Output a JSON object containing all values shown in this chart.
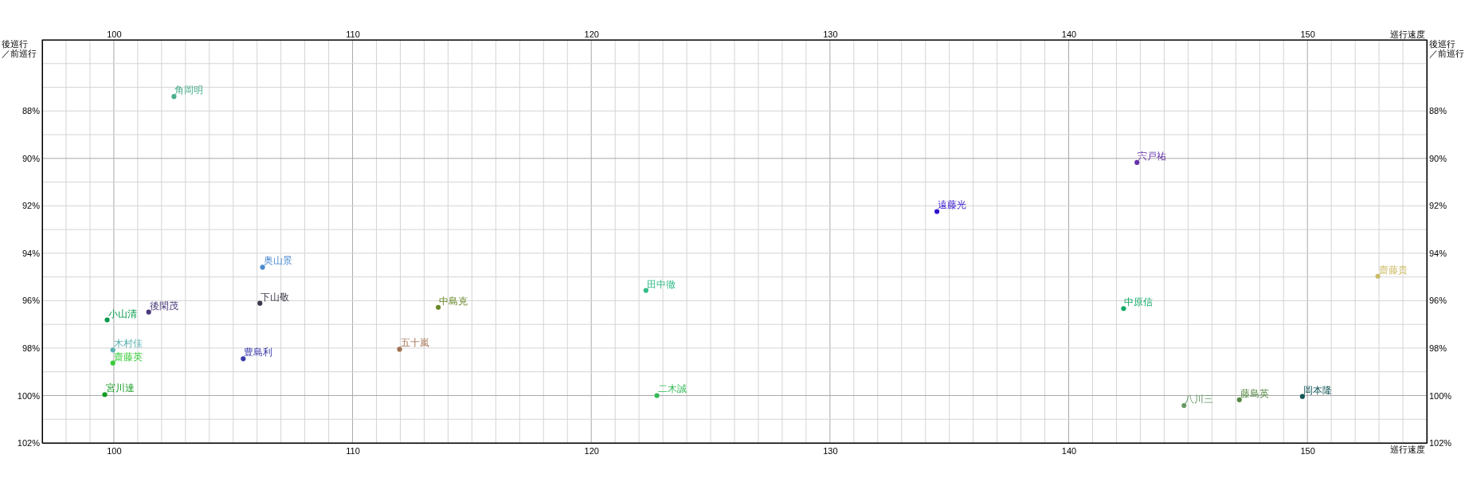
{
  "chart_data": {
    "type": "scatter",
    "xlabel": "巡行速度",
    "x2label": "巡行速度",
    "ylabel": "後巡行／前巡行",
    "y2label": "後巡行／前巡行",
    "grid": true,
    "marker": "circle",
    "xlim": [
      97,
      155
    ],
    "x2lim": [
      97,
      155
    ],
    "ylim": [
      102,
      85
    ],
    "y2lim": [
      102,
      85
    ],
    "xticks": [
      {
        "value": 97,
        "label": null
      },
      {
        "value": 98,
        "label": null
      },
      {
        "value": 99,
        "label": null
      },
      100,
      {
        "value": 101,
        "label": null
      },
      {
        "value": 102,
        "label": null
      },
      {
        "value": 103,
        "label": null
      },
      {
        "value": 104,
        "label": null
      },
      {
        "value": 105,
        "label": null
      },
      {
        "value": 106,
        "label": null
      },
      {
        "value": 107,
        "label": null
      },
      {
        "value": 108,
        "label": null
      },
      {
        "value": 109,
        "label": null
      },
      110,
      {
        "value": 111,
        "label": null
      },
      {
        "value": 112,
        "label": null
      },
      {
        "value": 113,
        "label": null
      },
      {
        "value": 114,
        "label": null
      },
      {
        "value": 115,
        "label": null
      },
      {
        "value": 116,
        "label": null
      },
      {
        "value": 117,
        "label": null
      },
      {
        "value": 118,
        "label": null
      },
      {
        "value": 119,
        "label": null
      },
      120,
      {
        "value": 121,
        "label": null
      },
      {
        "value": 122,
        "label": null
      },
      {
        "value": 123,
        "label": null
      },
      {
        "value": 124,
        "label": null
      },
      {
        "value": 125,
        "label": null
      },
      {
        "value": 126,
        "label": null
      },
      {
        "value": 127,
        "label": null
      },
      {
        "value": 128,
        "label": null
      },
      {
        "value": 129,
        "label": null
      },
      130,
      {
        "value": 131,
        "label": null
      },
      {
        "value": 132,
        "label": null
      },
      {
        "value": 133,
        "label": null
      },
      {
        "value": 134,
        "label": null
      },
      {
        "value": 135,
        "label": null
      },
      {
        "value": 136,
        "label": null
      },
      {
        "value": 137,
        "label": null
      },
      {
        "value": 138,
        "label": null
      },
      {
        "value": 139,
        "label": null
      },
      140,
      {
        "value": 141,
        "label": null
      },
      {
        "value": 142,
        "label": null
      },
      {
        "value": 143,
        "label": null
      },
      {
        "value": 144,
        "label": null
      },
      {
        "value": 145,
        "label": null
      },
      {
        "value": 146,
        "label": null
      },
      {
        "value": 147,
        "label": null
      },
      {
        "value": 148,
        "label": null
      },
      {
        "value": 149,
        "label": null
      },
      150,
      {
        "value": 151,
        "label": null
      },
      {
        "value": 152,
        "label": null
      },
      {
        "value": 153,
        "label": null
      },
      {
        "value": 154,
        "label": null
      },
      {
        "value": 155,
        "label": null
      }
    ],
    "x2ticks": [
      100,
      110,
      120,
      130,
      140,
      150
    ],
    "yticks": [
      {
        "value": 86,
        "label": null
      },
      {
        "value": 87,
        "label": null
      },
      {
        "value": 88,
        "label": "88%"
      },
      {
        "value": 89,
        "label": null
      },
      {
        "value": 90,
        "label": "90%"
      },
      {
        "value": 91,
        "label": null
      },
      {
        "value": 92,
        "label": "92%"
      },
      {
        "value": 93,
        "label": null
      },
      {
        "value": 94,
        "label": "94%"
      },
      {
        "value": 95,
        "label": null
      },
      {
        "value": 96,
        "label": "96%"
      },
      {
        "value": 97,
        "label": null
      },
      {
        "value": 98,
        "label": "98%"
      },
      {
        "value": 99,
        "label": null
      },
      {
        "value": 100,
        "label": "100%"
      },
      {
        "value": 101,
        "label": null
      },
      {
        "value": 102,
        "label": "102%"
      }
    ],
    "y2ticks": [
      {
        "value": 88,
        "label": "88%"
      },
      {
        "value": 90,
        "label": "90%"
      },
      {
        "value": 92,
        "label": "92%"
      },
      {
        "value": 94,
        "label": "94%"
      },
      {
        "value": 96,
        "label": "96%"
      },
      {
        "value": 98,
        "label": "98%"
      },
      {
        "value": 100,
        "label": "100%"
      },
      {
        "value": 102,
        "label": "102%"
      }
    ],
    "series": [
      {
        "name": "角岡明",
        "color": "#4aae8a",
        "x": [
          102.52
        ],
        "values": [
          87.39
        ]
      },
      {
        "name": "奥山景",
        "color": "#4a8ad0",
        "x": [
          106.23
        ],
        "values": [
          94.59
        ]
      },
      {
        "name": "下山敬",
        "color": "#3a3a4a",
        "x": [
          106.12
        ],
        "values": [
          96.11
        ]
      },
      {
        "name": "後閑茂",
        "color": "#4a3a7a",
        "x": [
          101.46
        ],
        "values": [
          96.48
        ]
      },
      {
        "name": "小山清",
        "color": "#00994a",
        "x": [
          99.72
        ],
        "values": [
          96.81
        ]
      },
      {
        "name": "中島克",
        "color": "#6a8a2a",
        "x": [
          113.59
        ],
        "values": [
          96.28
        ]
      },
      {
        "name": "五十嵐",
        "color": "#a07050",
        "x": [
          111.97
        ],
        "values": [
          98.05
        ]
      },
      {
        "name": "豊島利",
        "color": "#3a3aaa",
        "x": [
          105.42
        ],
        "values": [
          98.45
        ]
      },
      {
        "name": "木村佳",
        "color": "#5ab0b0",
        "x": [
          99.96
        ],
        "values": [
          98.08
        ]
      },
      {
        "name": "齋藤英",
        "color": "#3acc3a",
        "x": [
          99.96
        ],
        "values": [
          98.63
        ]
      },
      {
        "name": "宮川達",
        "color": "#119922",
        "x": [
          99.62
        ],
        "values": [
          99.96
        ]
      },
      {
        "name": "田中徹",
        "color": "#33bb88",
        "x": [
          122.29
        ],
        "values": [
          95.57
        ]
      },
      {
        "name": "二木誠",
        "color": "#33bb55",
        "x": [
          122.75
        ],
        "values": [
          100.0
        ]
      },
      {
        "name": "遠藤光",
        "color": "#3311cc",
        "x": [
          134.48
        ],
        "values": [
          92.24
        ]
      },
      {
        "name": "宍戸祐",
        "color": "#6633aa",
        "x": [
          142.86
        ],
        "values": [
          90.17
        ]
      },
      {
        "name": "中原信",
        "color": "#11aa66",
        "x": [
          142.3
        ],
        "values": [
          96.33
        ]
      },
      {
        "name": "齋藤貴",
        "color": "#ccbb66",
        "x": [
          152.95
        ],
        "values": [
          94.97
        ]
      },
      {
        "name": "八川三",
        "color": "#669966",
        "x": [
          144.83
        ],
        "values": [
          100.42
        ]
      },
      {
        "name": "藤島英",
        "color": "#558844",
        "x": [
          147.15
        ],
        "values": [
          100.18
        ]
      },
      {
        "name": "岡本隆",
        "color": "#115555",
        "x": [
          149.79
        ],
        "values": [
          100.04
        ]
      }
    ]
  }
}
